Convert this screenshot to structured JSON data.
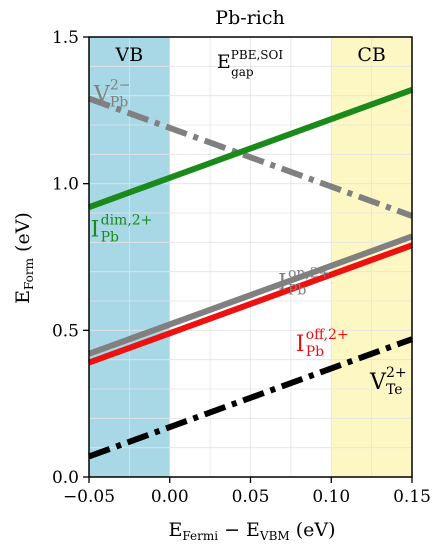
{
  "chart_data": {
    "type": "line",
    "title": "Pb-rich",
    "xlabel": {
      "main": "E",
      "sub1": "Fermi",
      "mid": " − E",
      "sub2": "VBM",
      "unit": " (eV)"
    },
    "ylabel": {
      "main": "E",
      "sub": "Form",
      "unit": " (eV)"
    },
    "xlim": [
      -0.05,
      0.15
    ],
    "ylim": [
      0.0,
      1.5
    ],
    "xticks": [
      -0.05,
      0.0,
      0.05,
      0.1,
      0.15
    ],
    "xtick_labels": [
      "−0.05",
      "0.00",
      "0.05",
      "0.10",
      "0.15"
    ],
    "yticks": [
      0.0,
      0.5,
      1.0,
      1.5
    ],
    "ytick_labels": [
      "0.0",
      "0.5",
      "1.0",
      "1.5"
    ],
    "grid": true,
    "regions": [
      {
        "name": "VB",
        "x0": -0.05,
        "x1": 0.0,
        "color": "#a8d8e6"
      },
      {
        "name": "CB",
        "x0": 0.1,
        "x1": 0.15,
        "color": "#fdf7c3"
      }
    ],
    "gap_label": {
      "main": "E",
      "sup": "PBE,SOI",
      "sub": "gap"
    },
    "series": [
      {
        "name": {
          "main": "V",
          "sup": "2−",
          "sub": "Pb"
        },
        "x": [
          -0.05,
          0.15
        ],
        "y": [
          1.29,
          0.89
        ],
        "color": "#808080",
        "style": "dashdot",
        "label_at": [
          -0.047,
          1.28
        ]
      },
      {
        "name": {
          "main": "I",
          "sup": "dim,2+",
          "sub": "Pb"
        },
        "x": [
          -0.05,
          0.15
        ],
        "y": [
          0.92,
          1.32
        ],
        "color": "#1a8a1a",
        "style": "solid",
        "label_at": [
          -0.049,
          0.82
        ]
      },
      {
        "name": {
          "main": "I",
          "sup": "on,2+",
          "sub": "Pb"
        },
        "x": [
          -0.05,
          0.15
        ],
        "y": [
          0.42,
          0.82
        ],
        "color": "#808080",
        "style": "solid",
        "label_at": [
          0.067,
          0.64
        ]
      },
      {
        "name": {
          "main": "I",
          "sup": "off,2+",
          "sub": "Pb"
        },
        "x": [
          -0.05,
          0.15
        ],
        "y": [
          0.39,
          0.79
        ],
        "color": "#ee1111",
        "style": "solid",
        "label_at": [
          0.078,
          0.43
        ]
      },
      {
        "name": {
          "main": "V",
          "sup": "2+",
          "sub": "Te"
        },
        "x": [
          -0.05,
          0.15
        ],
        "y": [
          0.07,
          0.47
        ],
        "color": "#000000",
        "style": "dashdot",
        "label_at": [
          0.124,
          0.3
        ]
      }
    ]
  }
}
